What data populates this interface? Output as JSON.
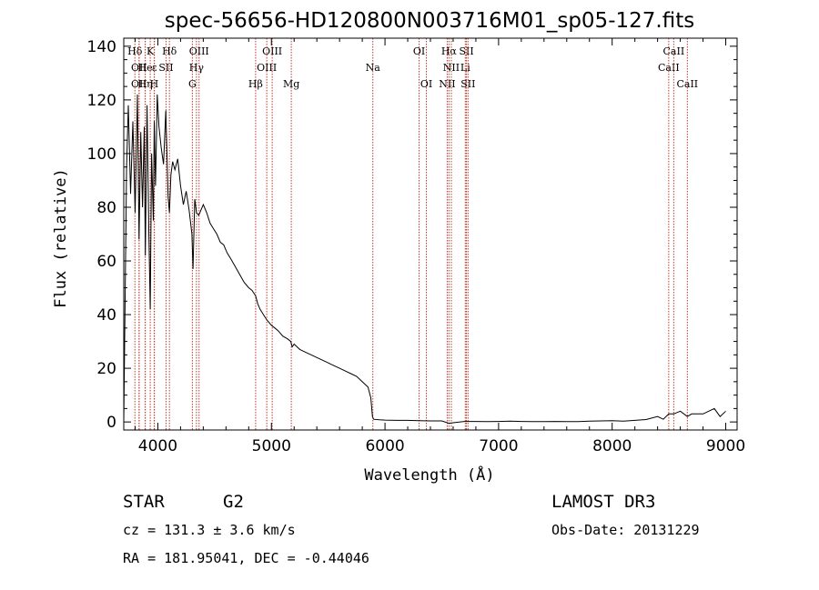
{
  "chart_data": {
    "type": "line",
    "title": "spec-56656-HD120800N003716M01_sp05-127.fits",
    "xlabel": "Wavelength (Å)",
    "ylabel": "Flux (relative)",
    "xlim": [
      3700,
      9100
    ],
    "ylim": [
      -3,
      143
    ],
    "xticks": [
      4000,
      5000,
      6000,
      7000,
      8000,
      9000
    ],
    "yticks": [
      0,
      20,
      40,
      60,
      80,
      100,
      120,
      140
    ],
    "grid": false,
    "legend": "none",
    "series": [
      {
        "x": [
          3700,
          3725,
          3740,
          3760,
          3780,
          3800,
          3820,
          3835,
          3850,
          3865,
          3880,
          3890,
          3905,
          3920,
          3933,
          3945,
          3960,
          3968,
          3980,
          3995,
          4010,
          4030,
          4050,
          4070,
          4090,
          4102,
          4115,
          4130,
          4150,
          4175,
          4200,
          4225,
          4250,
          4275,
          4300,
          4310,
          4325,
          4340,
          4360,
          4380,
          4400,
          4430,
          4460,
          4490,
          4520,
          4550,
          4580,
          4610,
          4640,
          4680,
          4720,
          4760,
          4800,
          4830,
          4861,
          4880,
          4900,
          4930,
          4960,
          5000,
          5030,
          5060,
          5100,
          5140,
          5170,
          5183,
          5200,
          5250,
          5300,
          5350,
          5400,
          5450,
          5500,
          5550,
          5600,
          5650,
          5700,
          5750,
          5800,
          5850,
          5875,
          5890,
          5900,
          5950,
          6000,
          6100,
          6200,
          6300,
          6400,
          6500,
          6563,
          6600,
          6700,
          6800,
          6900,
          7000,
          7100,
          7200,
          7300,
          7400,
          7500,
          7600,
          7700,
          7800,
          7900,
          8000,
          8100,
          8200,
          8300,
          8400,
          8450,
          8498,
          8542,
          8600,
          8662,
          8700,
          8750,
          8800,
          8850,
          8900,
          8950,
          9000
        ],
        "y": [
          0,
          95,
          118,
          85,
          112,
          78,
          122,
          68,
          108,
          80,
          110,
          62,
          118,
          72,
          42,
          100,
          75,
          112,
          88,
          122,
          110,
          102,
          96,
          116,
          84,
          78,
          92,
          97,
          94,
          98,
          88,
          81,
          86,
          79,
          70,
          57,
          83,
          78,
          77,
          79,
          81,
          78,
          74,
          72,
          70,
          67,
          66,
          63,
          61,
          58,
          55,
          52,
          50,
          49,
          47,
          44,
          42,
          40,
          38,
          36,
          35,
          34,
          32,
          31,
          30,
          28,
          29,
          27,
          26,
          25,
          24,
          23,
          22,
          21,
          20,
          19,
          18,
          17,
          15,
          13,
          9,
          2,
          1,
          0.8,
          0.7,
          0.6,
          0.6,
          0.5,
          0.4,
          0.4,
          -0.5,
          -0.3,
          0.2,
          0.2,
          0.1,
          0.2,
          0.3,
          0.2,
          0.1,
          0.1,
          0.2,
          0.1,
          0.1,
          0.3,
          0.4,
          0.5,
          0.3,
          0.6,
          0.9,
          2,
          1,
          3,
          3,
          4,
          2,
          3,
          3,
          3,
          4,
          5,
          2,
          4
        ]
      }
    ],
    "line_markers": [
      {
        "wl": 3798,
        "label": "Hδ",
        "row": 0
      },
      {
        "wl": 3835,
        "label": "OII",
        "row": 1
      },
      {
        "wl": 3835,
        "label": "OII",
        "row": 2
      },
      {
        "wl": 3889,
        "label": "Hη",
        "row": 2
      },
      {
        "wl": 3889,
        "label": "He",
        "row": 1
      },
      {
        "wl": 3933,
        "label": "K",
        "row": 0
      },
      {
        "wl": 3968,
        "label": "H",
        "row": 2
      },
      {
        "wl": 3970,
        "label": "ε",
        "row": 1
      },
      {
        "wl": 4072,
        "label": "SII",
        "row": 1
      },
      {
        "wl": 4102,
        "label": "Hδ",
        "row": 0
      },
      {
        "wl": 4304,
        "label": "G",
        "row": 2
      },
      {
        "wl": 4340,
        "label": "Hγ",
        "row": 1
      },
      {
        "wl": 4363,
        "label": "OIII",
        "row": 0
      },
      {
        "wl": 4861,
        "label": "Hβ",
        "row": 2
      },
      {
        "wl": 4959,
        "label": "OIII",
        "row": 1
      },
      {
        "wl": 5007,
        "label": "OIII",
        "row": 0
      },
      {
        "wl": 5175,
        "label": "Mg",
        "row": 2
      },
      {
        "wl": 5893,
        "label": "Na",
        "row": 1
      },
      {
        "wl": 6300,
        "label": "OI",
        "row": 0
      },
      {
        "wl": 6364,
        "label": "OI",
        "row": 2
      },
      {
        "wl": 6548,
        "label": "NII",
        "row": 2
      },
      {
        "wl": 6563,
        "label": "Hα",
        "row": 0
      },
      {
        "wl": 6584,
        "label": "NII",
        "row": 1
      },
      {
        "wl": 6707,
        "label": "Li",
        "row": 1
      },
      {
        "wl": 6717,
        "label": "SII",
        "row": 0
      },
      {
        "wl": 6731,
        "label": "SII",
        "row": 2
      },
      {
        "wl": 8498,
        "label": "CaII",
        "row": 1
      },
      {
        "wl": 8542,
        "label": "CaII",
        "row": 0
      },
      {
        "wl": 8662,
        "label": "CaII",
        "row": 2
      }
    ]
  },
  "info": {
    "class_label": "STAR",
    "subclass": "G2",
    "survey": "LAMOST DR3",
    "cz": "cz = 131.3 ± 3.6 km/s",
    "obs_date": "Obs-Date: 20131229",
    "coords": "RA = 181.95041, DEC =  -0.44046"
  },
  "colors": {
    "line_marker": "#c0392b",
    "spectrum": "#000000"
  }
}
